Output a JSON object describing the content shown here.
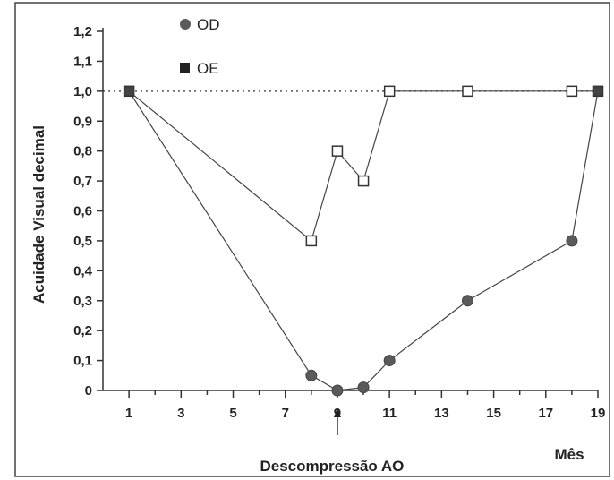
{
  "chart_data": {
    "type": "line",
    "title": "",
    "xlabel": "Mês",
    "ylabel": "Acuidade Visual decimal",
    "x_ticks": [
      1,
      3,
      5,
      7,
      9,
      11,
      13,
      15,
      17,
      19
    ],
    "x_ticks_text": [
      "1",
      "3",
      "5",
      "7",
      "9",
      "11",
      "13",
      "15",
      "17",
      "19"
    ],
    "y_ticks": [
      0,
      0.1,
      0.2,
      0.3,
      0.4,
      0.5,
      0.6,
      0.7,
      0.8,
      0.9,
      1.0,
      1.1,
      1.2
    ],
    "y_ticks_text": [
      "0",
      "0,1",
      "0,2",
      "0,3",
      "0,4",
      "0,5",
      "0,6",
      "0,7",
      "0,8",
      "0,9",
      "1,0",
      "1,1",
      "1,2"
    ],
    "xlim": [
      0,
      19
    ],
    "ylim": [
      0,
      1.2
    ],
    "reference_line": {
      "y": 1.0,
      "style": "dotted"
    },
    "series": [
      {
        "name": "OD",
        "marker": "circle",
        "color": "#555555",
        "x": [
          1,
          8,
          9,
          10,
          11,
          14,
          18,
          19
        ],
        "y": [
          1.0,
          0.05,
          0.0,
          0.01,
          0.1,
          0.3,
          0.5,
          1.0
        ]
      },
      {
        "name": "OE",
        "marker": "square",
        "color": "#222222",
        "x": [
          1,
          8,
          9,
          10,
          11,
          14,
          18,
          19
        ],
        "y": [
          1.0,
          0.5,
          0.8,
          0.7,
          1.0,
          1.0,
          1.0,
          1.0
        ]
      }
    ],
    "legend": {
      "placement": "top-left"
    },
    "annotation": {
      "text": "Descompressão AO",
      "x": 9
    }
  }
}
